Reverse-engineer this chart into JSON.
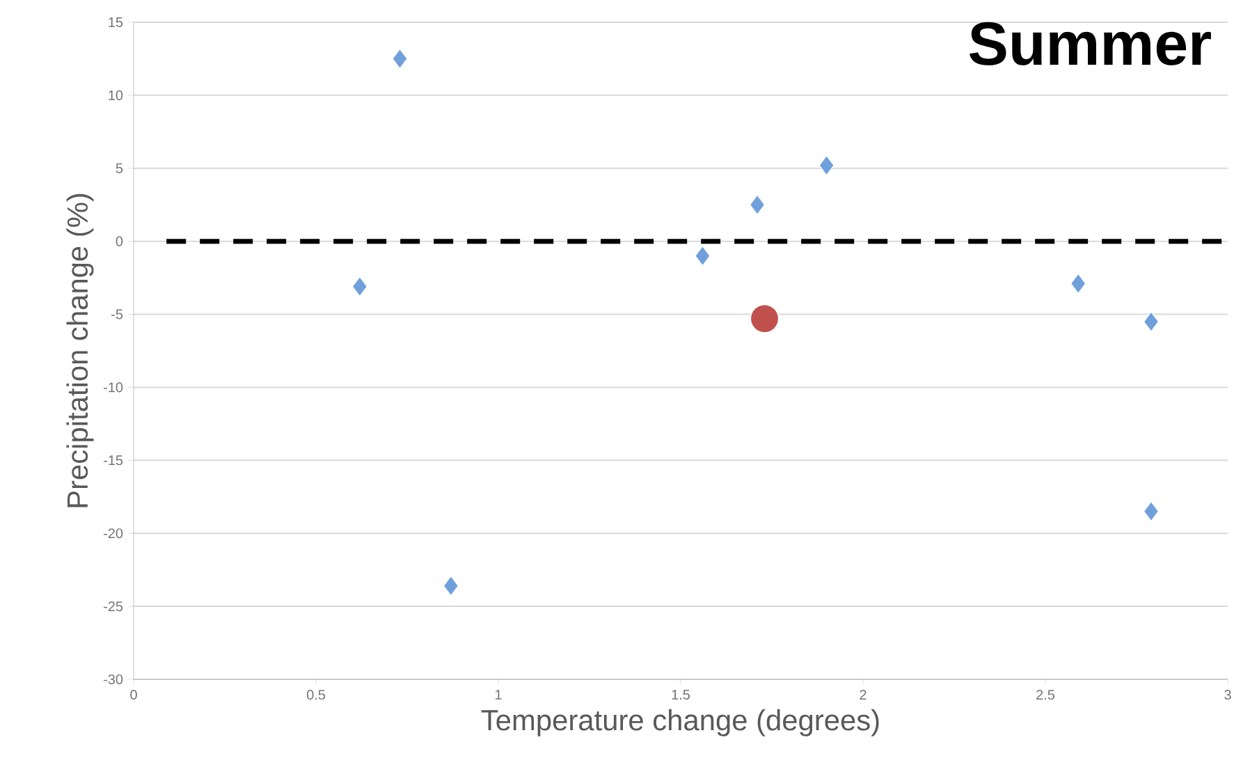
{
  "chart_data": {
    "type": "scatter",
    "title": "Summer",
    "xlabel": "Temperature change (degrees)",
    "ylabel": "Precipitation change (%)",
    "xlim": [
      0,
      3
    ],
    "ylim": [
      -30,
      15
    ],
    "xticks": [
      0,
      0.5,
      1,
      1.5,
      2,
      2.5,
      3
    ],
    "yticks": [
      -30,
      -25,
      -20,
      -15,
      -10,
      -5,
      0,
      5,
      10,
      15
    ],
    "grid": "y",
    "series": [
      {
        "color": "#6fa0dc",
        "marker": "diamond",
        "x": [
          0.62,
          0.73,
          0.87,
          1.56,
          1.71,
          1.9,
          2.59,
          2.79,
          2.79
        ],
        "values": [
          -3.1,
          12.5,
          -23.6,
          -1.0,
          2.5,
          5.2,
          -2.9,
          -5.5,
          -18.5
        ]
      },
      {
        "color": "#c0504d",
        "marker": "circle",
        "x": [
          1.73
        ],
        "values": [
          -5.3
        ]
      }
    ],
    "ref_lines": [
      {
        "axis": "y",
        "value": 0,
        "color": "#000000",
        "line_style": "dashed"
      }
    ]
  }
}
